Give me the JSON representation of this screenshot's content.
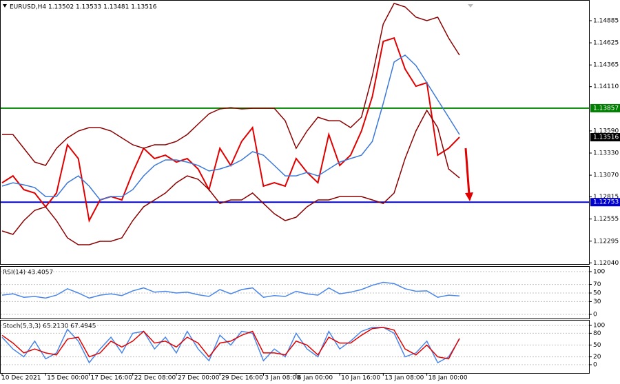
{
  "chart_data": [
    {
      "type": "line",
      "title": "EURUSD,H4 1.13502 1.13533 1.13481 1.13516",
      "categories": [
        "10 Dec 2021",
        null,
        null,
        null,
        "15 Dec 00:00",
        null,
        null,
        null,
        "17 Dec 16:00",
        null,
        null,
        null,
        "22 Dec 08:00",
        null,
        null,
        null,
        "27 Dec 00:00",
        null,
        null,
        null,
        "29 Dec 16:00",
        null,
        null,
        null,
        "3 Jan 08:00",
        null,
        null,
        "6 Jan 00:00",
        null,
        null,
        null,
        "10 Jan 16:00",
        null,
        null,
        null,
        "13 Jan 08:00",
        null,
        null,
        null,
        "18 Jan 00:00",
        null,
        null,
        null
      ],
      "series": [
        {
          "color": "#e00000",
          "values": [
            1.12981,
            1.13062,
            1.129,
            1.1286,
            1.12698,
            1.1286,
            1.13427,
            1.13265,
            1.12536,
            1.12779,
            1.12819,
            1.12779,
            1.13103,
            1.13386,
            1.13265,
            1.13305,
            1.13224,
            1.13265,
            1.13143,
            1.129,
            1.13386,
            1.13184,
            1.13467,
            1.13629,
            1.12941,
            1.12981,
            1.12941,
            1.13265,
            1.13103,
            1.12981,
            1.13548,
            1.13184,
            1.13305,
            1.13589,
            1.13994,
            1.14642,
            1.14682,
            1.14318,
            1.14115,
            1.14156,
            1.13305,
            1.13386,
            1.13516
          ]
        },
        {
          "color": "#3c78d8",
          "values": [
            1.12941,
            1.12981,
            1.12957,
            1.12925,
            1.12819,
            1.12819,
            1.12981,
            1.13062,
            1.12941,
            1.12779,
            1.12819,
            1.12819,
            1.129,
            1.13062,
            1.13184,
            1.13249,
            1.13249,
            1.13224,
            1.13184,
            1.13119,
            1.13143,
            1.13184,
            1.13249,
            1.13346,
            1.13305,
            1.13184,
            1.13062,
            1.13062,
            1.13103,
            1.13062,
            1.13143,
            1.13224,
            1.13265,
            1.13305,
            1.13467,
            1.13913,
            1.14399,
            1.1448,
            1.14358,
            1.14156,
            1.13954,
            1.13751,
            1.13548
          ]
        },
        {
          "color": "#8b0000",
          "values": [
            1.13548,
            1.13548,
            1.13386,
            1.13224,
            1.13184,
            1.13386,
            1.13508,
            1.13589,
            1.13629,
            1.13629,
            1.13589,
            1.13508,
            1.13427,
            1.13386,
            1.13427,
            1.13427,
            1.13467,
            1.13548,
            1.1367,
            1.13791,
            1.13848,
            1.13864,
            1.13848,
            1.13856,
            1.13856,
            1.13856,
            1.1371,
            1.13386,
            1.13589,
            1.13751,
            1.1371,
            1.1371,
            1.13629,
            1.13751,
            1.14237,
            1.14845,
            1.15088,
            1.15047,
            1.14926,
            1.14885,
            1.14926,
            1.14682,
            1.1448
          ]
        },
        {
          "color": "#8b0000",
          "values": [
            1.12415,
            1.12374,
            1.12536,
            1.12657,
            1.12698,
            1.12536,
            1.12334,
            1.12253,
            1.12253,
            1.12293,
            1.12293,
            1.12334,
            1.12536,
            1.12698,
            1.12779,
            1.1286,
            1.12981,
            1.13062,
            1.13022,
            1.129,
            1.12738,
            1.12779,
            1.12779,
            1.1286,
            1.12738,
            1.12617,
            1.12536,
            1.12576,
            1.12698,
            1.12779,
            1.12779,
            1.12819,
            1.12819,
            1.12819,
            1.12779,
            1.12738,
            1.1286,
            1.13265,
            1.13589,
            1.13832,
            1.13629,
            1.13143,
            1.13038
          ]
        }
      ],
      "ylim": [
        1.12026,
        1.15128
      ],
      "yticks": [
        1.14885,
        1.14625,
        1.14365,
        {
          "value": 1.1411,
          "label": "1.14110"
        },
        {
          "value": 1.1359,
          "label": "1.13590"
        },
        {
          "value": 1.1333,
          "label": "1.13330"
        },
        {
          "value": 1.1307,
          "label": "1.13070"
        },
        1.12815,
        1.12555,
        1.12295,
        {
          "value": 1.1204,
          "label": "1.12040"
        }
      ],
      "levels": [
        {
          "value": 1.13857,
          "color": "#008000"
        },
        {
          "value": 1.12753,
          "color": "#0000cc"
        }
      ],
      "last_price": 1.13516,
      "grid": false
    },
    {
      "type": "line",
      "title": "RSI(14) 43.4057",
      "series": [
        {
          "color": "#4a86e8",
          "values": [
            45,
            48,
            40,
            42,
            38,
            45,
            60,
            50,
            38,
            45,
            48,
            44,
            55,
            62,
            52,
            54,
            50,
            52,
            46,
            42,
            58,
            48,
            58,
            62,
            40,
            44,
            42,
            54,
            48,
            45,
            62,
            48,
            52,
            58,
            68,
            75,
            72,
            60,
            54,
            55,
            40,
            45,
            43
          ]
        }
      ],
      "ylim": [
        0,
        100
      ],
      "yticks": [
        100,
        70,
        50,
        30,
        0
      ],
      "grid": true
    },
    {
      "type": "line",
      "title": "Stoch(5,3,3) 65.2130 67.4945",
      "series": [
        {
          "color": "#4a86e8",
          "values": [
            70,
            40,
            20,
            60,
            15,
            30,
            90,
            60,
            5,
            40,
            70,
            30,
            80,
            85,
            40,
            70,
            30,
            85,
            40,
            10,
            75,
            50,
            85,
            80,
            10,
            40,
            20,
            80,
            40,
            20,
            85,
            40,
            60,
            85,
            95,
            95,
            80,
            20,
            30,
            60,
            5,
            20,
            65
          ]
        },
        {
          "color": "#e00000",
          "values": [
            75,
            55,
            30,
            40,
            30,
            25,
            65,
            70,
            20,
            30,
            60,
            45,
            60,
            85,
            55,
            60,
            45,
            70,
            55,
            20,
            55,
            60,
            75,
            85,
            30,
            30,
            25,
            60,
            50,
            25,
            70,
            55,
            55,
            75,
            92,
            95,
            88,
            40,
            25,
            50,
            20,
            15,
            67
          ]
        }
      ],
      "ylim": [
        0,
        100
      ],
      "yticks": [
        100,
        80,
        50,
        20,
        0
      ],
      "grid": true
    }
  ]
}
